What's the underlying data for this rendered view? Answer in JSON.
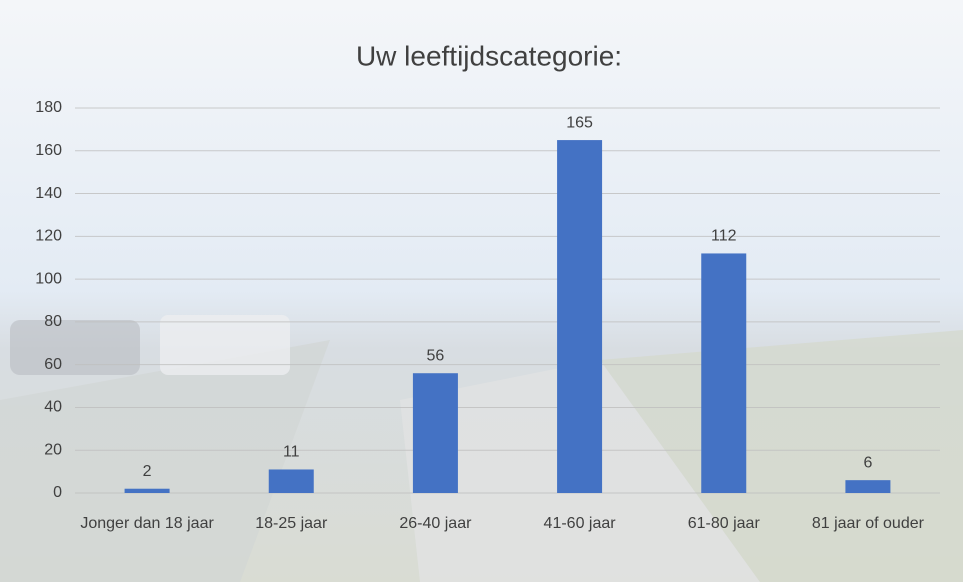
{
  "chart_data": {
    "type": "bar",
    "title": "Uw leeftijdscategorie:",
    "categories": [
      "Jonger dan 18 jaar",
      "18-25 jaar",
      "26-40 jaar",
      "41-60 jaar",
      "61-80 jaar",
      "81 jaar of ouder"
    ],
    "values": [
      2,
      11,
      56,
      165,
      112,
      6
    ],
    "color": "#4472c4",
    "ylim": [
      0,
      180
    ],
    "yticks": [
      0,
      20,
      40,
      60,
      80,
      100,
      120,
      140,
      160,
      180
    ],
    "grid": true
  }
}
